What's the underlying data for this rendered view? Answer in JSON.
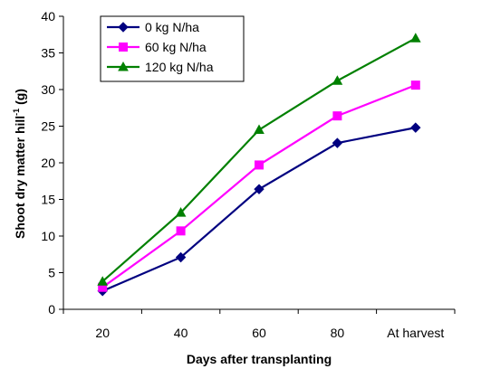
{
  "chart_data": {
    "type": "line",
    "title": "",
    "xlabel": "Days after transplanting",
    "ylabel_main": "Shoot dry matter hill",
    "ylabel_sup": "-1",
    "ylabel_unit": " (g)",
    "categories": [
      "20",
      "40",
      "60",
      "80",
      "At harvest"
    ],
    "ylim": [
      0,
      40
    ],
    "yticks": [
      0,
      5,
      10,
      15,
      20,
      25,
      30,
      35,
      40
    ],
    "grid": false,
    "legend_position": "top-left",
    "series": [
      {
        "name": "0 kg N/ha",
        "color": "#000080",
        "marker": "diamond",
        "values": [
          2.5,
          7.1,
          16.4,
          22.7,
          24.8
        ]
      },
      {
        "name": "60 kg N/ha",
        "color": "#ff00ff",
        "marker": "square",
        "values": [
          3.0,
          10.7,
          19.7,
          26.4,
          30.6
        ]
      },
      {
        "name": "120 kg N/ha",
        "color": "#008000",
        "marker": "triangle",
        "values": [
          3.8,
          13.2,
          24.5,
          31.2,
          37.0
        ]
      }
    ]
  }
}
